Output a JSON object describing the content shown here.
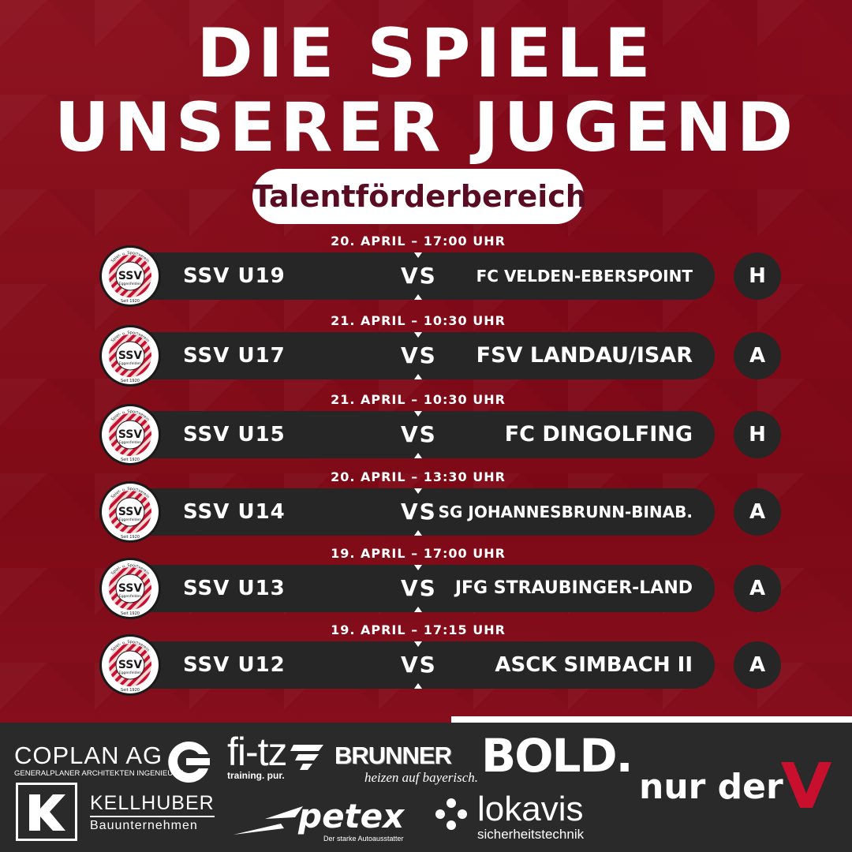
{
  "header": {
    "title_line1": "DIE SPIELE",
    "title_line2": "UNSERER JUGEND",
    "subtitle": "Talentförderbereich"
  },
  "club_logo": {
    "name": "SSV",
    "city": "Eggenfelden",
    "arc_text": "Spiel- u. Sportverein",
    "since": "Seit 1920"
  },
  "vs_label": "VS",
  "matches": [
    {
      "date": "20. APRIL – 17:00 UHR",
      "home": "SSV U19",
      "away": "FC VELDEN-EBERSPOINT",
      "venue": "H"
    },
    {
      "date": "21. APRIL – 10:30 UHR",
      "home": "SSV U17",
      "away": "FSV LANDAU/ISAR",
      "venue": "A"
    },
    {
      "date": "21. APRIL – 10:30 UHR",
      "home": "SSV U15",
      "away": "FC DINGOLFING",
      "venue": "H"
    },
    {
      "date": "20. APRIL – 13:30 UHR",
      "home": "SSV U14",
      "away": "SG JOHANNESBRUNN-BINAB.",
      "venue": "A"
    },
    {
      "date": "19. APRIL – 17:00 UHR",
      "home": "SSV U13",
      "away": "JFG STRAUBINGER-LAND",
      "venue": "A"
    },
    {
      "date": "19. APRIL – 17:15 UHR",
      "home": "SSV U12",
      "away": "ASCK SIMBACH II",
      "venue": "A"
    }
  ],
  "sponsors": {
    "coplan": {
      "name": "COPLAN AG",
      "tagline": "GENERALPLANER ARCHITEKTEN INGENIEURE"
    },
    "fitz": {
      "name": "fi-tz",
      "tagline": "training. pur."
    },
    "brunner": {
      "name": "BRUNNER",
      "tagline": "heizen auf bayerisch."
    },
    "bold": {
      "name": "BOLD."
    },
    "kellhuber": {
      "name": "KELLHUBER",
      "tagline": "Bauunternehmen"
    },
    "petex": {
      "name": "petex",
      "tagline": "Der starke Autoausstatter"
    },
    "lokavis": {
      "name": "lokavis",
      "tagline": "sicherheitstechnik"
    },
    "nurder": {
      "name": "nur der"
    }
  },
  "colors": {
    "background": "#8b0f1c",
    "bar": "#262626",
    "accent_red": "#c8102e",
    "subtitle_text": "#5a0d22"
  }
}
